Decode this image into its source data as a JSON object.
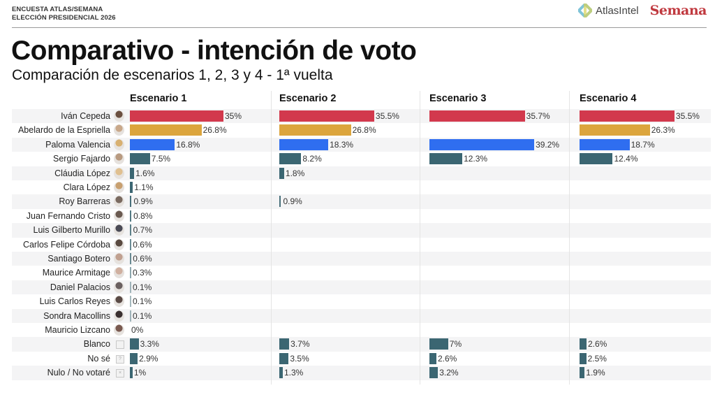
{
  "header": {
    "kicker_line1": "ENCUESTA ATLAS/SEMANA",
    "kicker_line2": "ELECCIÓN PRESIDENCIAL 2026",
    "logo_atlas": "AtlasIntel",
    "logo_semana": "Semana",
    "title": "Comparativo - intención de voto",
    "subtitle": "Comparación de escenarios 1, 2, 3 y 4 - 1ª vuelta"
  },
  "colors": {
    "cepeda": "#d2394d",
    "espriella": "#dca53d",
    "valencia": "#2f6ef0",
    "other": "#3b6672"
  },
  "chart_data": {
    "type": "bar",
    "orientation": "horizontal",
    "title": "Comparativo - intención de voto",
    "subtitle": "Comparación de escenarios 1, 2, 3 y 4 - 1ª vuelta",
    "unit": "%",
    "categories": [
      "Iván Cepeda",
      "Abelardo de la Espriella",
      "Paloma Valencia",
      "Sergio Fajardo",
      "Cláudia López",
      "Clara López",
      "Roy Barreras",
      "Juan Fernando Cristo",
      "Luis Gilberto Murillo",
      "Carlos Felipe Córdoba",
      "Santiago Botero",
      "Maurice Armitage",
      "Daniel Palacios",
      "Luis Carlos Reyes",
      "Sondra Macollins",
      "Mauricio Lizcano",
      "Blanco",
      "No sé",
      "Nulo / No votaré"
    ],
    "category_icons": [
      "avatar",
      "avatar",
      "avatar",
      "avatar",
      "avatar",
      "avatar",
      "avatar",
      "avatar",
      "avatar",
      "avatar",
      "avatar",
      "avatar",
      "avatar",
      "avatar",
      "avatar",
      "avatar",
      "blank-box-icon",
      "question-box-icon",
      "x-box-icon"
    ],
    "category_color_keys": [
      "cepeda",
      "espriella",
      "valencia",
      "other",
      "other",
      "other",
      "other",
      "other",
      "other",
      "other",
      "other",
      "other",
      "other",
      "other",
      "other",
      "other",
      "other",
      "other",
      "other"
    ],
    "series": [
      {
        "name": "Escenario 1",
        "values": [
          35,
          26.8,
          16.8,
          7.5,
          1.6,
          1.1,
          0.9,
          0.8,
          0.7,
          0.6,
          0.6,
          0.3,
          0.1,
          0.1,
          0.1,
          0,
          3.3,
          2.9,
          1
        ],
        "labels": [
          "35%",
          "26.8%",
          "16.8%",
          "7.5%",
          "1.6%",
          "1.1%",
          "0.9%",
          "0.8%",
          "0.7%",
          "0.6%",
          "0.6%",
          "0.3%",
          "0.1%",
          "0.1%",
          "0.1%",
          "0%",
          "3.3%",
          "2.9%",
          "1%"
        ]
      },
      {
        "name": "Escenario 2",
        "values": [
          35.5,
          26.8,
          18.3,
          8.2,
          1.8,
          null,
          0.9,
          null,
          null,
          null,
          null,
          null,
          null,
          null,
          null,
          null,
          3.7,
          3.5,
          1.3
        ],
        "labels": [
          "35.5%",
          "26.8%",
          "18.3%",
          "8.2%",
          "1.8%",
          null,
          "0.9%",
          null,
          null,
          null,
          null,
          null,
          null,
          null,
          null,
          null,
          "3.7%",
          "3.5%",
          "1.3%"
        ]
      },
      {
        "name": "Escenario 3",
        "values": [
          35.7,
          null,
          39.2,
          12.3,
          null,
          null,
          null,
          null,
          null,
          null,
          null,
          null,
          null,
          null,
          null,
          null,
          7,
          2.6,
          3.2
        ],
        "labels": [
          "35.7%",
          null,
          "39.2%",
          "12.3%",
          null,
          null,
          null,
          null,
          null,
          null,
          null,
          null,
          null,
          null,
          null,
          null,
          "7%",
          "2.6%",
          "3.2%"
        ]
      },
      {
        "name": "Escenario 4",
        "values": [
          35.5,
          26.3,
          18.7,
          12.4,
          null,
          null,
          null,
          null,
          null,
          null,
          null,
          null,
          null,
          null,
          null,
          null,
          2.6,
          2.5,
          1.9
        ],
        "labels": [
          "35.5%",
          "26.3%",
          "18.7%",
          "12.4%",
          null,
          null,
          null,
          null,
          null,
          null,
          null,
          null,
          null,
          null,
          null,
          null,
          "2.6%",
          "2.5%",
          "1.9%"
        ]
      }
    ],
    "xlim": [
      0,
      40
    ],
    "grid": false,
    "legend": "none"
  }
}
